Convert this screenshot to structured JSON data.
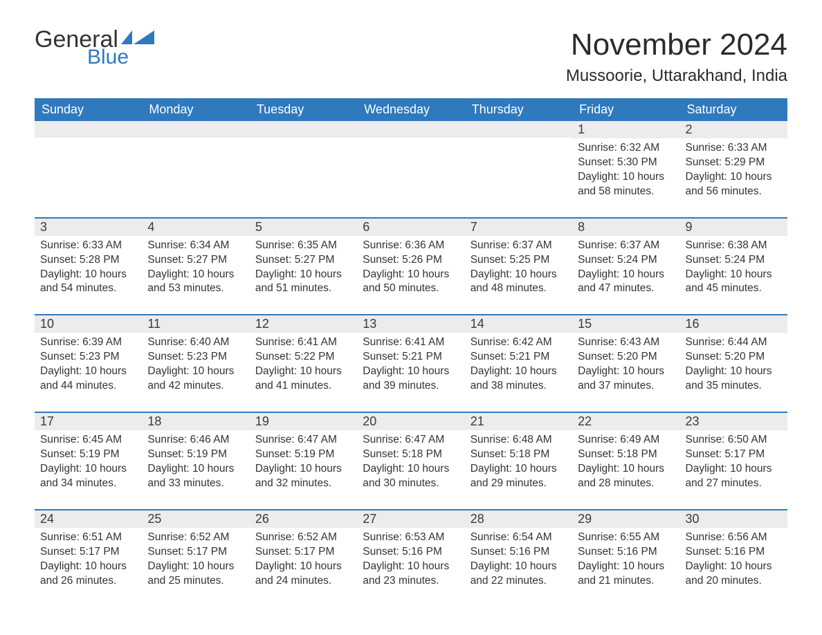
{
  "logo": {
    "general": "General",
    "blue": "Blue",
    "flag_color": "#2f79bd"
  },
  "title": "November 2024",
  "location": "Mussoorie, Uttarakhand, India",
  "colors": {
    "header_bg": "#2f79bd",
    "header_text": "#ffffff",
    "daynum_bg": "#ececec",
    "row_border": "#2f79bd",
    "body_text": "#333333",
    "page_bg": "#ffffff"
  },
  "fonts": {
    "month_title_size_pt": 33,
    "location_size_pt": 18,
    "weekday_size_pt": 14,
    "daynum_size_pt": 14,
    "cell_size_pt": 12
  },
  "weekdays": [
    "Sunday",
    "Monday",
    "Tuesday",
    "Wednesday",
    "Thursday",
    "Friday",
    "Saturday"
  ],
  "weeks": [
    [
      {
        "day": "",
        "sunrise": "",
        "sunset": "",
        "daylight": ""
      },
      {
        "day": "",
        "sunrise": "",
        "sunset": "",
        "daylight": ""
      },
      {
        "day": "",
        "sunrise": "",
        "sunset": "",
        "daylight": ""
      },
      {
        "day": "",
        "sunrise": "",
        "sunset": "",
        "daylight": ""
      },
      {
        "day": "",
        "sunrise": "",
        "sunset": "",
        "daylight": ""
      },
      {
        "day": "1",
        "sunrise": "Sunrise: 6:32 AM",
        "sunset": "Sunset: 5:30 PM",
        "daylight": "Daylight: 10 hours and 58 minutes."
      },
      {
        "day": "2",
        "sunrise": "Sunrise: 6:33 AM",
        "sunset": "Sunset: 5:29 PM",
        "daylight": "Daylight: 10 hours and 56 minutes."
      }
    ],
    [
      {
        "day": "3",
        "sunrise": "Sunrise: 6:33 AM",
        "sunset": "Sunset: 5:28 PM",
        "daylight": "Daylight: 10 hours and 54 minutes."
      },
      {
        "day": "4",
        "sunrise": "Sunrise: 6:34 AM",
        "sunset": "Sunset: 5:27 PM",
        "daylight": "Daylight: 10 hours and 53 minutes."
      },
      {
        "day": "5",
        "sunrise": "Sunrise: 6:35 AM",
        "sunset": "Sunset: 5:27 PM",
        "daylight": "Daylight: 10 hours and 51 minutes."
      },
      {
        "day": "6",
        "sunrise": "Sunrise: 6:36 AM",
        "sunset": "Sunset: 5:26 PM",
        "daylight": "Daylight: 10 hours and 50 minutes."
      },
      {
        "day": "7",
        "sunrise": "Sunrise: 6:37 AM",
        "sunset": "Sunset: 5:25 PM",
        "daylight": "Daylight: 10 hours and 48 minutes."
      },
      {
        "day": "8",
        "sunrise": "Sunrise: 6:37 AM",
        "sunset": "Sunset: 5:24 PM",
        "daylight": "Daylight: 10 hours and 47 minutes."
      },
      {
        "day": "9",
        "sunrise": "Sunrise: 6:38 AM",
        "sunset": "Sunset: 5:24 PM",
        "daylight": "Daylight: 10 hours and 45 minutes."
      }
    ],
    [
      {
        "day": "10",
        "sunrise": "Sunrise: 6:39 AM",
        "sunset": "Sunset: 5:23 PM",
        "daylight": "Daylight: 10 hours and 44 minutes."
      },
      {
        "day": "11",
        "sunrise": "Sunrise: 6:40 AM",
        "sunset": "Sunset: 5:23 PM",
        "daylight": "Daylight: 10 hours and 42 minutes."
      },
      {
        "day": "12",
        "sunrise": "Sunrise: 6:41 AM",
        "sunset": "Sunset: 5:22 PM",
        "daylight": "Daylight: 10 hours and 41 minutes."
      },
      {
        "day": "13",
        "sunrise": "Sunrise: 6:41 AM",
        "sunset": "Sunset: 5:21 PM",
        "daylight": "Daylight: 10 hours and 39 minutes."
      },
      {
        "day": "14",
        "sunrise": "Sunrise: 6:42 AM",
        "sunset": "Sunset: 5:21 PM",
        "daylight": "Daylight: 10 hours and 38 minutes."
      },
      {
        "day": "15",
        "sunrise": "Sunrise: 6:43 AM",
        "sunset": "Sunset: 5:20 PM",
        "daylight": "Daylight: 10 hours and 37 minutes."
      },
      {
        "day": "16",
        "sunrise": "Sunrise: 6:44 AM",
        "sunset": "Sunset: 5:20 PM",
        "daylight": "Daylight: 10 hours and 35 minutes."
      }
    ],
    [
      {
        "day": "17",
        "sunrise": "Sunrise: 6:45 AM",
        "sunset": "Sunset: 5:19 PM",
        "daylight": "Daylight: 10 hours and 34 minutes."
      },
      {
        "day": "18",
        "sunrise": "Sunrise: 6:46 AM",
        "sunset": "Sunset: 5:19 PM",
        "daylight": "Daylight: 10 hours and 33 minutes."
      },
      {
        "day": "19",
        "sunrise": "Sunrise: 6:47 AM",
        "sunset": "Sunset: 5:19 PM",
        "daylight": "Daylight: 10 hours and 32 minutes."
      },
      {
        "day": "20",
        "sunrise": "Sunrise: 6:47 AM",
        "sunset": "Sunset: 5:18 PM",
        "daylight": "Daylight: 10 hours and 30 minutes."
      },
      {
        "day": "21",
        "sunrise": "Sunrise: 6:48 AM",
        "sunset": "Sunset: 5:18 PM",
        "daylight": "Daylight: 10 hours and 29 minutes."
      },
      {
        "day": "22",
        "sunrise": "Sunrise: 6:49 AM",
        "sunset": "Sunset: 5:18 PM",
        "daylight": "Daylight: 10 hours and 28 minutes."
      },
      {
        "day": "23",
        "sunrise": "Sunrise: 6:50 AM",
        "sunset": "Sunset: 5:17 PM",
        "daylight": "Daylight: 10 hours and 27 minutes."
      }
    ],
    [
      {
        "day": "24",
        "sunrise": "Sunrise: 6:51 AM",
        "sunset": "Sunset: 5:17 PM",
        "daylight": "Daylight: 10 hours and 26 minutes."
      },
      {
        "day": "25",
        "sunrise": "Sunrise: 6:52 AM",
        "sunset": "Sunset: 5:17 PM",
        "daylight": "Daylight: 10 hours and 25 minutes."
      },
      {
        "day": "26",
        "sunrise": "Sunrise: 6:52 AM",
        "sunset": "Sunset: 5:17 PM",
        "daylight": "Daylight: 10 hours and 24 minutes."
      },
      {
        "day": "27",
        "sunrise": "Sunrise: 6:53 AM",
        "sunset": "Sunset: 5:16 PM",
        "daylight": "Daylight: 10 hours and 23 minutes."
      },
      {
        "day": "28",
        "sunrise": "Sunrise: 6:54 AM",
        "sunset": "Sunset: 5:16 PM",
        "daylight": "Daylight: 10 hours and 22 minutes."
      },
      {
        "day": "29",
        "sunrise": "Sunrise: 6:55 AM",
        "sunset": "Sunset: 5:16 PM",
        "daylight": "Daylight: 10 hours and 21 minutes."
      },
      {
        "day": "30",
        "sunrise": "Sunrise: 6:56 AM",
        "sunset": "Sunset: 5:16 PM",
        "daylight": "Daylight: 10 hours and 20 minutes."
      }
    ]
  ]
}
